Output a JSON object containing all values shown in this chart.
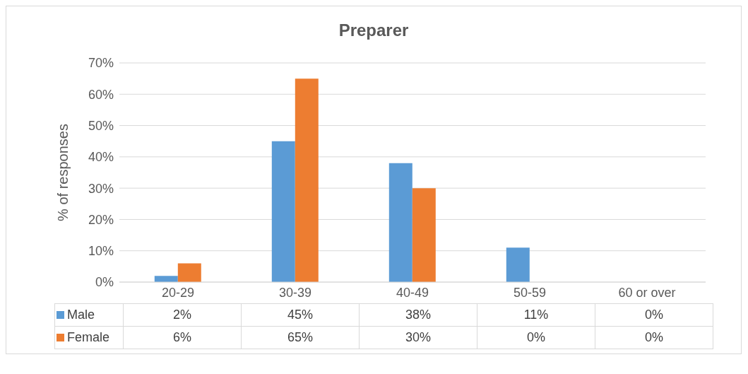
{
  "chart_data": {
    "type": "bar",
    "title": "Preparer",
    "ylabel": "% of responses",
    "categories": [
      "20-29",
      "30-39",
      "40-49",
      "50-59",
      "60 or over"
    ],
    "series": [
      {
        "name": "Male",
        "color": "#5b9bd5",
        "values": [
          2,
          45,
          38,
          11,
          0
        ],
        "value_labels": [
          "2%",
          "45%",
          "38%",
          "11%",
          "0%"
        ]
      },
      {
        "name": "Female",
        "color": "#ed7d31",
        "values": [
          6,
          65,
          30,
          0,
          0
        ],
        "value_labels": [
          "6%",
          "65%",
          "30%",
          "0%",
          "0%"
        ]
      }
    ],
    "ylim": [
      0,
      70
    ],
    "yticks": [
      {
        "value": 0,
        "label": "0%"
      },
      {
        "value": 10,
        "label": "10%"
      },
      {
        "value": 20,
        "label": "20%"
      },
      {
        "value": 30,
        "label": "30%"
      },
      {
        "value": 40,
        "label": "40%"
      },
      {
        "value": 50,
        "label": "50%"
      },
      {
        "value": 60,
        "label": "60%"
      },
      {
        "value": 70,
        "label": "70%"
      }
    ],
    "grid": "y",
    "legend": "bottom left"
  }
}
